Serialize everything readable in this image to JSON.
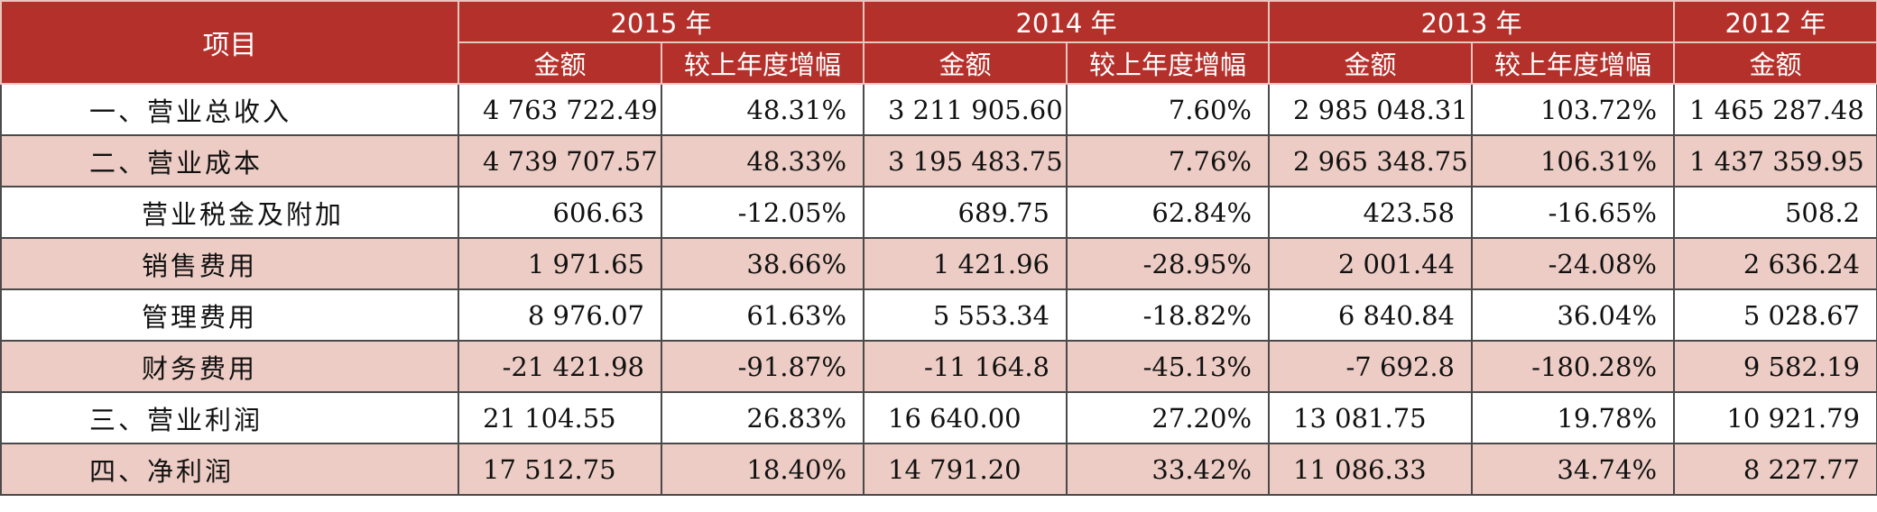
{
  "header": {
    "item_label": "项目",
    "years": [
      "2015 年",
      "2014 年",
      "2013 年",
      "2012 年"
    ],
    "amount_label": "金额",
    "growth_label": "较上年度增幅"
  },
  "colors": {
    "header_bg": "#b4302b",
    "header_text": "#ffffff",
    "shaded_row_bg": "#ecccc4",
    "plain_row_bg": "#ffffff"
  },
  "rows": [
    {
      "label": "一、营业总收入",
      "level": "top",
      "shaded": false,
      "v2015": "4 763 722.49",
      "g2015": "48.31%",
      "v2014": "3 211 905.60",
      "g2014": "7.60%",
      "v2013": "2 985 048.31",
      "g2013": "103.72%",
      "v2012": "1 465 287.48"
    },
    {
      "label": "二、营业成本",
      "level": "top",
      "shaded": true,
      "v2015": "4 739 707.57",
      "g2015": "48.33%",
      "v2014": "3 195 483.75",
      "g2014": "7.76%",
      "v2013": "2 965 348.75",
      "g2013": "106.31%",
      "v2012": "1 437 359.95"
    },
    {
      "label": "营业税金及附加",
      "level": "sub",
      "shaded": false,
      "v2015": "606.63",
      "g2015": "-12.05%",
      "v2014": "689.75",
      "g2014": "62.84%",
      "v2013": "423.58",
      "g2013": "-16.65%",
      "v2012": "508.2"
    },
    {
      "label": "销售费用",
      "level": "sub",
      "shaded": true,
      "v2015": "1 971.65",
      "g2015": "38.66%",
      "v2014": "1 421.96",
      "g2014": "-28.95%",
      "v2013": "2 001.44",
      "g2013": "-24.08%",
      "v2012": "2 636.24"
    },
    {
      "label": "管理费用",
      "level": "sub",
      "shaded": false,
      "v2015": "8 976.07",
      "g2015": "61.63%",
      "v2014": "5 553.34",
      "g2014": "-18.82%",
      "v2013": "6 840.84",
      "g2013": "36.04%",
      "v2012": "5 028.67"
    },
    {
      "label": "财务费用",
      "level": "sub",
      "shaded": true,
      "v2015": "-21 421.98",
      "g2015": "-91.87%",
      "v2014": "-11 164.8",
      "g2014": "-45.13%",
      "v2013": "-7 692.8",
      "g2013": "-180.28%",
      "v2012": "9 582.19"
    },
    {
      "label": "三、营业利润",
      "level": "top",
      "shaded": false,
      "v2015": "21 104.55",
      "g2015": "26.83%",
      "v2014": "16 640.00",
      "g2014": "27.20%",
      "v2013": "13 081.75",
      "g2013": "19.78%",
      "v2012": "10 921.79"
    },
    {
      "label": "四、净利润",
      "level": "top",
      "shaded": true,
      "v2015": "17 512.75",
      "g2015": "18.40%",
      "v2014": "14 791.20",
      "g2014": "33.42%",
      "v2013": "11 086.33",
      "g2013": "34.74%",
      "v2012": "8 227.77"
    }
  ]
}
